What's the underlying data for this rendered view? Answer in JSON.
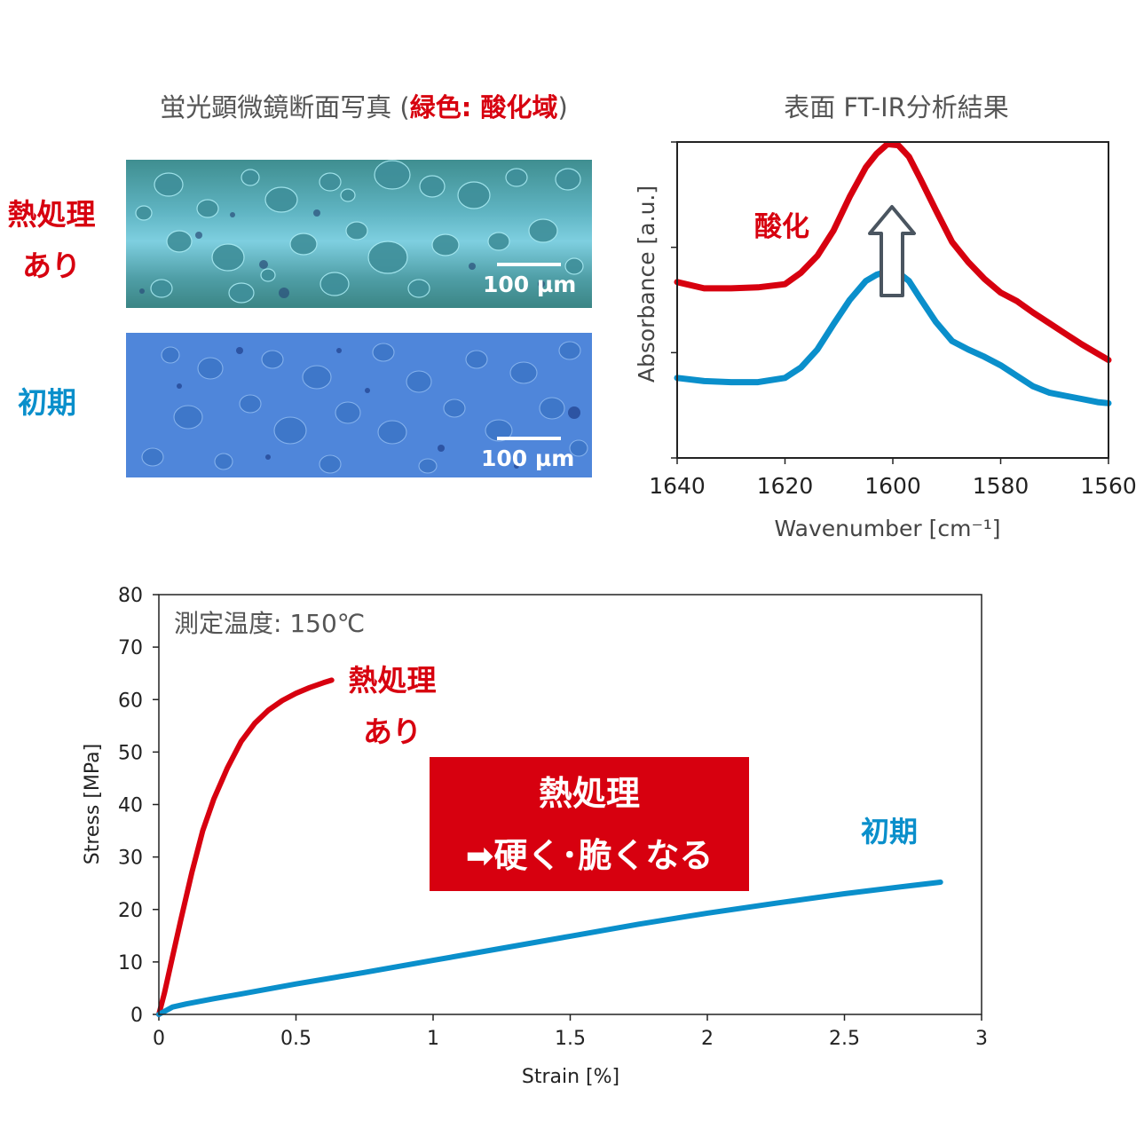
{
  "microscopy": {
    "title_plain": "蛍光顕微鏡断面写真 (",
    "title_emph": "緑色: 酸化域",
    "title_close": ")",
    "label_treated": "熱処理\nあり",
    "label_initial": "初期",
    "scale_bar_label": "100 µm"
  },
  "ir": {
    "title": "表面 FT-IR分析結果",
    "annotation": "酸化"
  },
  "stress_strain": {
    "annotation": "測定温度: 150℃",
    "label_treated": "熱処理\nあり",
    "label_initial": "初期",
    "callout_line1": "熱処理",
    "callout_line2": "➡硬く･脆くなる"
  },
  "colors": {
    "treated": "#d7000f",
    "initial": "#0a8fcb",
    "arrow": "#4a5560"
  },
  "chart_data": [
    {
      "type": "line",
      "title": "表面 FT-IR分析結果",
      "xlabel": "Wavenumber [cm⁻¹]",
      "ylabel": "Absorbance [a.u.]",
      "xlim": [
        1640,
        1560
      ],
      "ylim": [
        0,
        3
      ],
      "x_ticks": [
        1640,
        1620,
        1600,
        1580,
        1560
      ],
      "y_tick_labels_shown": false,
      "reversed_x": true,
      "annotation": "酸化",
      "series": [
        {
          "name": "熱処理あり",
          "color": "#d7000f",
          "x": [
            1640,
            1635,
            1630,
            1625,
            1620,
            1617,
            1614,
            1611,
            1608,
            1605,
            1603,
            1601,
            1599,
            1597,
            1595,
            1592,
            1589,
            1586,
            1583,
            1580,
            1577,
            1574,
            1571,
            1568,
            1565,
            1562,
            1560
          ],
          "y": [
            1.67,
            1.61,
            1.61,
            1.62,
            1.65,
            1.76,
            1.92,
            2.16,
            2.48,
            2.76,
            2.89,
            2.98,
            2.97,
            2.86,
            2.66,
            2.35,
            2.05,
            1.86,
            1.7,
            1.57,
            1.49,
            1.38,
            1.28,
            1.18,
            1.08,
            0.99,
            0.93
          ]
        },
        {
          "name": "初期",
          "color": "#0a8fcb",
          "x": [
            1640,
            1635,
            1630,
            1625,
            1620,
            1617,
            1614,
            1611,
            1608,
            1605,
            1603,
            1601,
            1599,
            1597,
            1595,
            1592,
            1589,
            1586,
            1583,
            1580,
            1577,
            1574,
            1571,
            1568,
            1565,
            1562,
            1560
          ],
          "y": [
            0.76,
            0.73,
            0.72,
            0.72,
            0.76,
            0.86,
            1.03,
            1.27,
            1.5,
            1.68,
            1.74,
            1.77,
            1.76,
            1.68,
            1.52,
            1.29,
            1.11,
            1.03,
            0.96,
            0.88,
            0.78,
            0.68,
            0.62,
            0.59,
            0.56,
            0.53,
            0.52
          ]
        }
      ]
    },
    {
      "type": "line",
      "title": "",
      "xlabel": "Strain [%]",
      "ylabel": "Stress [MPa]",
      "xlim": [
        0,
        3
      ],
      "ylim": [
        0,
        80
      ],
      "x_ticks": [
        0.0,
        0.5,
        1.0,
        1.5,
        2.0,
        2.5,
        3.0
      ],
      "y_ticks": [
        0,
        10,
        20,
        30,
        40,
        50,
        60,
        70,
        80
      ],
      "annotation": "測定温度: 150℃",
      "series": [
        {
          "name": "熱処理あり",
          "color": "#d7000f",
          "x": [
            0,
            0.02,
            0.05,
            0.08,
            0.12,
            0.16,
            0.2,
            0.25,
            0.3,
            0.35,
            0.4,
            0.45,
            0.5,
            0.55,
            0.6,
            0.63
          ],
          "y": [
            0,
            4,
            11,
            18,
            27,
            35,
            41,
            47,
            52,
            55.5,
            58,
            59.8,
            61.2,
            62.3,
            63.2,
            63.7
          ]
        },
        {
          "name": "初期",
          "color": "#0a8fcb",
          "x": [
            0,
            0.05,
            0.1,
            0.2,
            0.3,
            0.5,
            0.75,
            1.0,
            1.25,
            1.5,
            1.75,
            2.0,
            2.25,
            2.5,
            2.75,
            2.85
          ],
          "y": [
            0,
            1.4,
            2.0,
            3.0,
            3.9,
            5.8,
            8.0,
            10.3,
            12.6,
            14.9,
            17.2,
            19.3,
            21.2,
            23.0,
            24.6,
            25.2
          ]
        }
      ]
    }
  ]
}
